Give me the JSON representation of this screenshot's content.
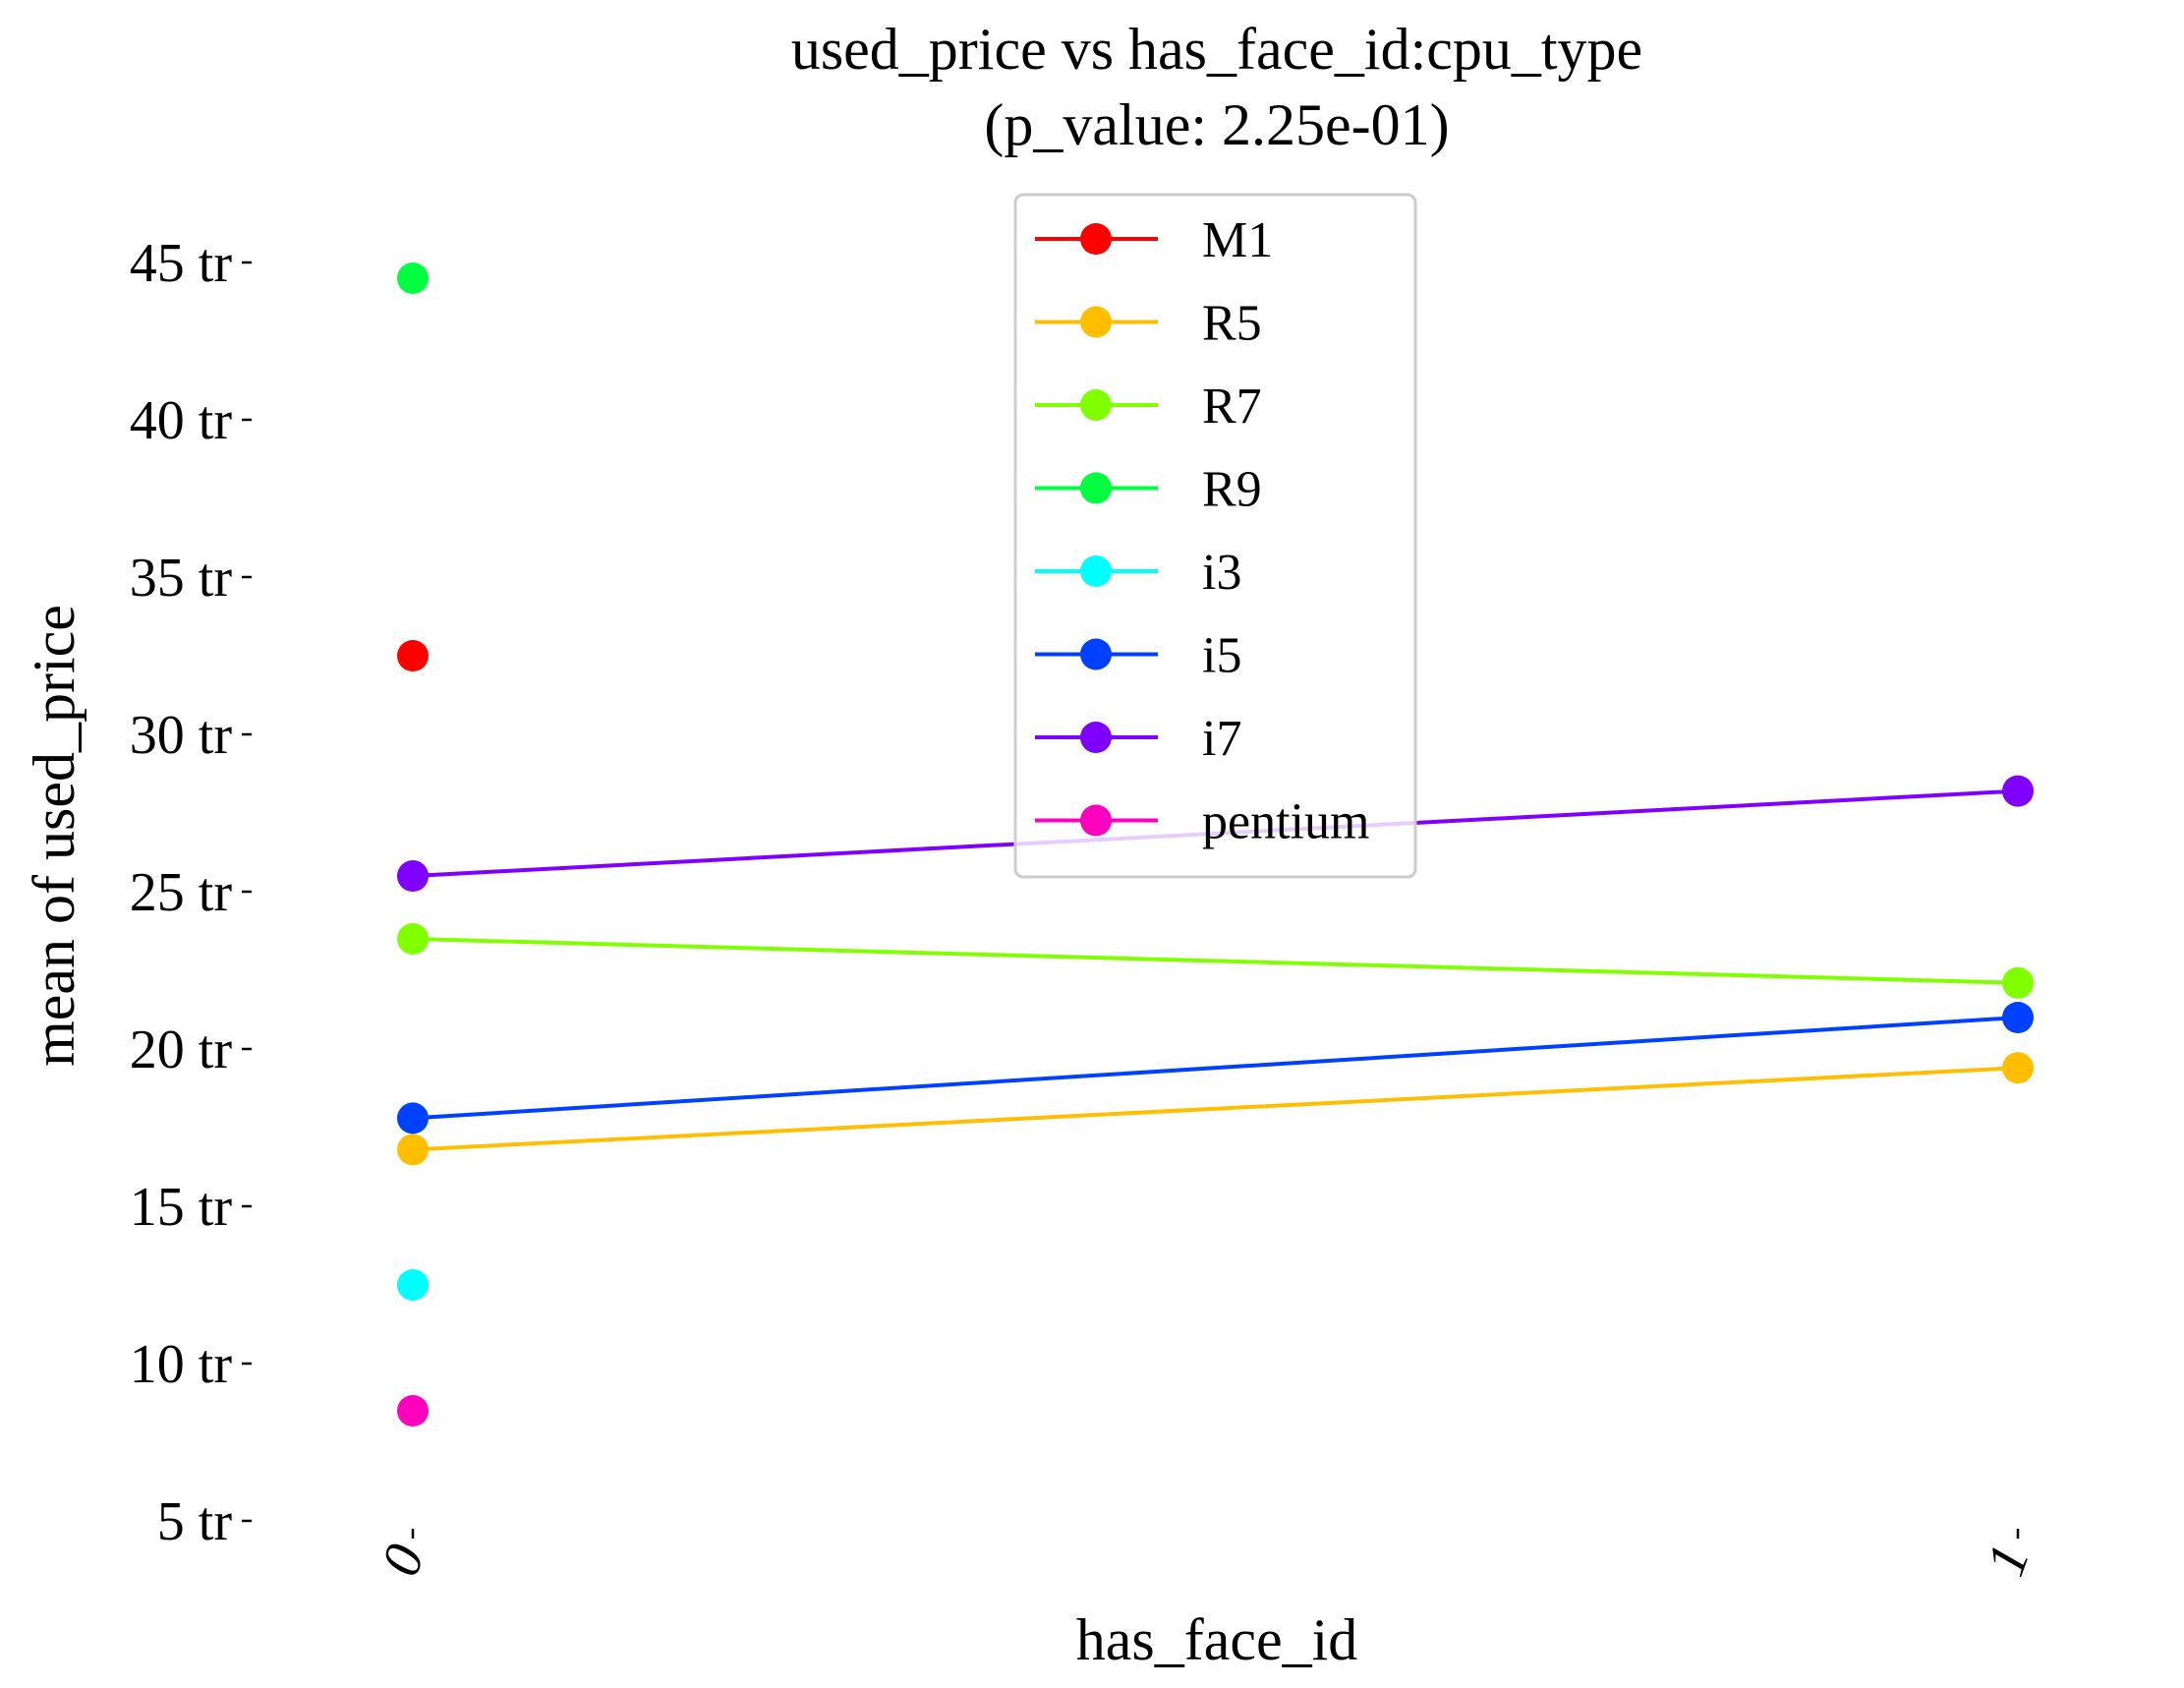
{
  "chart_data": {
    "type": "line",
    "title": "used_price vs has_face_id:cpu_type",
    "subtitle": "(p_value: 2.25e-01)",
    "xlabel": "has_face_id",
    "ylabel": "mean of used_price",
    "x": [
      "0",
      "1"
    ],
    "ylim": [
      5,
      46.5
    ],
    "y_ticks": [
      {
        "value": 5,
        "label": "5 tr"
      },
      {
        "value": 10,
        "label": "10 tr"
      },
      {
        "value": 15,
        "label": "15 tr"
      },
      {
        "value": 20,
        "label": "20 tr"
      },
      {
        "value": 25,
        "label": "25 tr"
      },
      {
        "value": 30,
        "label": "30 tr"
      },
      {
        "value": 35,
        "label": "35 tr"
      },
      {
        "value": 40,
        "label": "40 tr"
      },
      {
        "value": 45,
        "label": "45 tr"
      }
    ],
    "grid": false,
    "legend_placement": "top-center",
    "series": [
      {
        "name": "M1",
        "color": "#ff0000",
        "values": [
          32.5,
          null
        ]
      },
      {
        "name": "R5",
        "color": "#ffbf00",
        "values": [
          16.8,
          19.4
        ]
      },
      {
        "name": "R7",
        "color": "#80ff00",
        "values": [
          23.5,
          22.1
        ]
      },
      {
        "name": "R9",
        "color": "#00ff40",
        "values": [
          44.5,
          null
        ]
      },
      {
        "name": "i3",
        "color": "#00ffff",
        "values": [
          12.5,
          null
        ]
      },
      {
        "name": "i5",
        "color": "#0040ff",
        "values": [
          17.8,
          21.0
        ]
      },
      {
        "name": "i7",
        "color": "#8000ff",
        "values": [
          25.5,
          28.2
        ]
      },
      {
        "name": "pentium",
        "color": "#ff00bf",
        "values": [
          8.5,
          null
        ]
      }
    ]
  }
}
